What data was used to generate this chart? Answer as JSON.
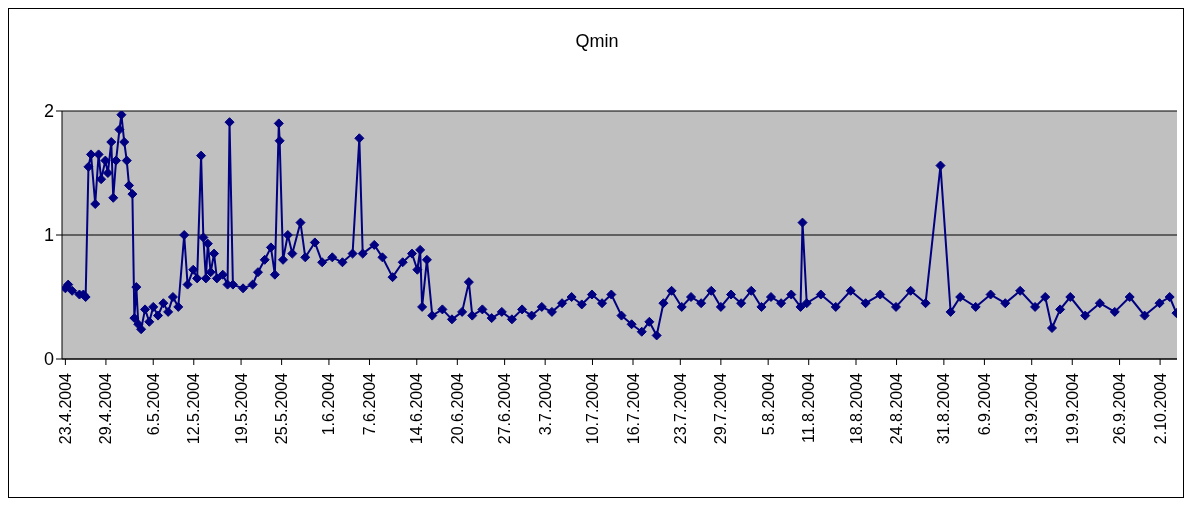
{
  "chart_data": {
    "type": "line",
    "title": "Qmin",
    "marker": "diamond",
    "grid": "y",
    "xlim": [
      "2004-04-22T12:00",
      "2004-10-04T12:00"
    ],
    "xticks": [
      {
        "value": "2004-04-23",
        "label": "23.4.2004"
      },
      {
        "value": "2004-04-29",
        "label": "29.4.2004"
      },
      {
        "value": "2004-05-06",
        "label": "6.5.2004"
      },
      {
        "value": "2004-05-12",
        "label": "12.5.2004"
      },
      {
        "value": "2004-05-19",
        "label": "19.5.2004"
      },
      {
        "value": "2004-05-25",
        "label": "25.5.2004"
      },
      {
        "value": "2004-06-01",
        "label": "1.6.2004"
      },
      {
        "value": "2004-06-07",
        "label": "7.6.2004"
      },
      {
        "value": "2004-06-14",
        "label": "14.6.2004"
      },
      {
        "value": "2004-06-20",
        "label": "20.6.2004"
      },
      {
        "value": "2004-06-27",
        "label": "27.6.2004"
      },
      {
        "value": "2004-07-03",
        "label": "3.7.2004"
      },
      {
        "value": "2004-07-10",
        "label": "10.7.2004"
      },
      {
        "value": "2004-07-16",
        "label": "16.7.2004"
      },
      {
        "value": "2004-07-23",
        "label": "23.7.2004"
      },
      {
        "value": "2004-07-29",
        "label": "29.7.2004"
      },
      {
        "value": "2004-08-05",
        "label": "5.8.2004"
      },
      {
        "value": "2004-08-11",
        "label": "11.8.2004"
      },
      {
        "value": "2004-08-18",
        "label": "18.8.2004"
      },
      {
        "value": "2004-08-24",
        "label": "24.8.2004"
      },
      {
        "value": "2004-08-31",
        "label": "31.8.2004"
      },
      {
        "value": "2004-09-06",
        "label": "6.9.2004"
      },
      {
        "value": "2004-09-13",
        "label": "13.9.2004"
      },
      {
        "value": "2004-09-19",
        "label": "19.9.2004"
      },
      {
        "value": "2004-09-26",
        "label": "26.9.2004"
      },
      {
        "value": "2004-10-02",
        "label": "2.10.2004"
      }
    ],
    "ylim": [
      0,
      2
    ],
    "yticks": [
      0,
      1,
      2
    ],
    "series": [
      {
        "color": "#000080",
        "x": [
          "2004-04-23",
          "2004-04-23T10:00",
          "2004-04-24",
          "2004-04-25T02:00",
          "2004-04-25T16:00",
          "2004-04-26",
          "2004-04-26T10:00",
          "2004-04-26T19:00",
          "2004-04-27T10:00",
          "2004-04-27T22:00",
          "2004-04-28T07:00",
          "2004-04-28T22:00",
          "2004-04-29T07:00",
          "2004-04-29T19:00",
          "2004-04-30T02:00",
          "2004-04-30T12:00",
          "2004-05-01",
          "2004-05-01T07:00",
          "2004-05-01T17:00",
          "2004-05-02T02:00",
          "2004-05-02T10:00",
          "2004-05-02T22:00",
          "2004-05-03T05:00",
          "2004-05-03T12:00",
          "2004-05-03T19:00",
          "2004-05-04T05:00",
          "2004-05-04T19:00",
          "2004-05-05T10:00",
          "2004-05-06",
          "2004-05-06T17:00",
          "2004-05-07T12:00",
          "2004-05-08T05:00",
          "2004-05-08T22:00",
          "2004-05-09T17:00",
          "2004-05-10T14:00",
          "2004-05-11T02:00",
          "2004-05-11T22:00",
          "2004-05-12T12:00",
          "2004-05-13T02:00",
          "2004-05-13T10:00",
          "2004-05-13T19:00",
          "2004-05-14T02:00",
          "2004-05-14T12:00",
          "2004-05-15",
          "2004-05-15T10:00",
          "2004-05-16T07:00",
          "2004-05-17",
          "2004-05-17T07:00",
          "2004-05-17T19:00",
          "2004-05-19T07:00",
          "2004-05-20T17:00",
          "2004-05-21T12:00",
          "2004-05-22T12:00",
          "2004-05-23T10:00",
          "2004-05-24",
          "2004-05-24T14:00",
          "2004-05-24T17:00",
          "2004-05-25T05:00",
          "2004-05-25T22:00",
          "2004-05-26T14:00",
          "2004-05-27T19:00",
          "2004-05-28T12:00",
          "2004-05-29T22:00",
          "2004-05-31",
          "2004-06-01T12:00",
          "2004-06-03",
          "2004-06-04T12:00",
          "2004-06-05T12:00",
          "2004-06-06",
          "2004-06-07T17:00",
          "2004-06-08T22:00",
          "2004-06-10T10:00",
          "2004-06-11T22:00",
          "2004-06-13T07:00",
          "2004-06-14T02:00",
          "2004-06-14T12:00",
          "2004-06-14T19:00",
          "2004-06-15T12:00",
          "2004-06-16T07:00",
          "2004-06-17T19:00",
          "2004-06-19T05:00",
          "2004-06-20T17:00",
          "2004-06-21T17:00",
          "2004-06-22T05:00",
          "2004-06-23T17:00",
          "2004-06-25T02:00",
          "2004-06-26T14:00",
          "2004-06-28T02:00",
          "2004-06-29T14:00",
          "2004-07-01",
          "2004-07-02T12:00",
          "2004-07-04",
          "2004-07-05T12:00",
          "2004-07-06T22:00",
          "2004-07-08T10:00",
          "2004-07-09T22:00",
          "2004-07-11T10:00",
          "2004-07-12T19:00",
          "2004-07-14T07:00",
          "2004-07-15T19:00",
          "2004-07-17T07:00",
          "2004-07-18T10:00",
          "2004-07-19T12:00",
          "2004-07-20T12:00",
          "2004-07-21T17:00",
          "2004-07-23T05:00",
          "2004-07-24T14:00",
          "2004-07-26T02:00",
          "2004-07-27T14:00",
          "2004-07-29",
          "2004-07-30T12:00",
          "2004-08-01",
          "2004-08-02T12:00",
          "2004-08-04",
          "2004-08-05T10:00",
          "2004-08-06T22:00",
          "2004-08-08T10:00",
          "2004-08-09T19:00",
          "2004-08-10T02:00",
          "2004-08-10T17:00",
          "2004-08-12T19:00",
          "2004-08-15",
          "2004-08-17T05:00",
          "2004-08-19T10:00",
          "2004-08-21T14:00",
          "2004-08-23T22:00",
          "2004-08-26T02:00",
          "2004-08-28T07:00",
          "2004-08-30T12:00",
          "2004-09-01",
          "2004-09-02T10:00",
          "2004-09-04T17:00",
          "2004-09-06T22:00",
          "2004-09-09T02:00",
          "2004-09-11T07:00",
          "2004-09-13T12:00",
          "2004-09-15",
          "2004-09-16",
          "2004-09-17T05:00",
          "2004-09-18T17:00",
          "2004-09-20T22:00",
          "2004-09-23T02:00",
          "2004-09-25T07:00",
          "2004-09-27T12:00",
          "2004-09-29T17:00",
          "2004-10-01T22:00",
          "2004-10-03T10:00",
          "2004-10-04T10:00"
        ],
        "values": [
          0.57,
          0.6,
          0.55,
          0.52,
          0.52,
          0.5,
          1.55,
          1.65,
          1.25,
          1.65,
          1.45,
          1.6,
          1.5,
          1.75,
          1.3,
          1.6,
          1.85,
          1.97,
          1.75,
          1.6,
          1.4,
          1.33,
          0.33,
          0.58,
          0.28,
          0.24,
          0.4,
          0.3,
          0.42,
          0.35,
          0.45,
          0.38,
          0.5,
          0.42,
          1.0,
          0.6,
          0.72,
          0.65,
          1.64,
          0.98,
          0.65,
          0.93,
          0.7,
          0.85,
          0.65,
          0.68,
          0.6,
          1.91,
          0.6,
          0.57,
          0.6,
          0.7,
          0.8,
          0.9,
          0.68,
          1.9,
          1.76,
          0.8,
          1.0,
          0.85,
          1.1,
          0.82,
          0.94,
          0.78,
          0.82,
          0.78,
          0.85,
          1.78,
          0.85,
          0.92,
          0.82,
          0.66,
          0.78,
          0.85,
          0.72,
          0.88,
          0.42,
          0.8,
          0.35,
          0.4,
          0.32,
          0.38,
          0.62,
          0.35,
          0.4,
          0.33,
          0.38,
          0.32,
          0.4,
          0.35,
          0.42,
          0.38,
          0.45,
          0.5,
          0.44,
          0.52,
          0.45,
          0.52,
          0.35,
          0.28,
          0.22,
          0.3,
          0.19,
          0.45,
          0.55,
          0.42,
          0.5,
          0.45,
          0.55,
          0.42,
          0.52,
          0.45,
          0.55,
          0.42,
          0.5,
          0.45,
          0.52,
          0.42,
          1.1,
          0.45,
          0.52,
          0.42,
          0.55,
          0.45,
          0.52,
          0.42,
          0.55,
          0.45,
          1.56,
          0.38,
          0.5,
          0.42,
          0.52,
          0.45,
          0.55,
          0.42,
          0.5,
          0.25,
          0.4,
          0.5,
          0.35,
          0.45,
          0.38,
          0.5,
          0.35,
          0.45,
          0.5,
          0.37
        ]
      }
    ]
  }
}
